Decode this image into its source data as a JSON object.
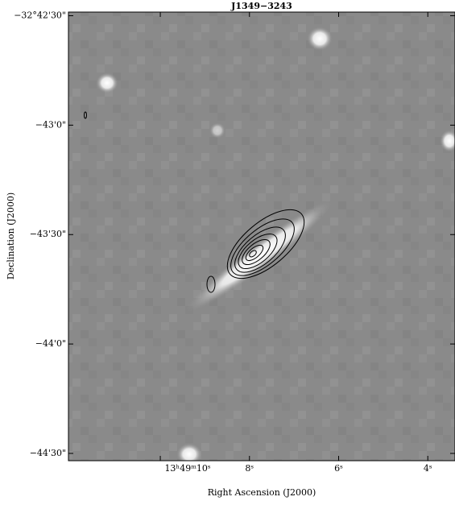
{
  "chart_data": {
    "type": "image",
    "title": "J1349−3243",
    "x_label": "Right Ascension (J2000)",
    "y_label": "Declination (J2000)",
    "xlim": [
      12.06,
      3.39
    ],
    "xticks": [
      {
        "value": 10,
        "label": "13ʰ49ᵐ10ˢ"
      },
      {
        "value": 8,
        "label": "8ˢ"
      },
      {
        "value": 6,
        "label": "6ˢ"
      },
      {
        "value": 4,
        "label": "4ˢ"
      }
    ],
    "ylim": [
      -117872,
      -117749
    ],
    "yticks": [
      {
        "value": -117750,
        "label": "−32°42'30\""
      },
      {
        "value": -117780,
        "label": "−43'0\""
      },
      {
        "value": -117810,
        "label": "−43'30\""
      },
      {
        "value": -117840,
        "label": "−44'0\""
      },
      {
        "value": -117870,
        "label": "−44'30\""
      }
    ]
  }
}
